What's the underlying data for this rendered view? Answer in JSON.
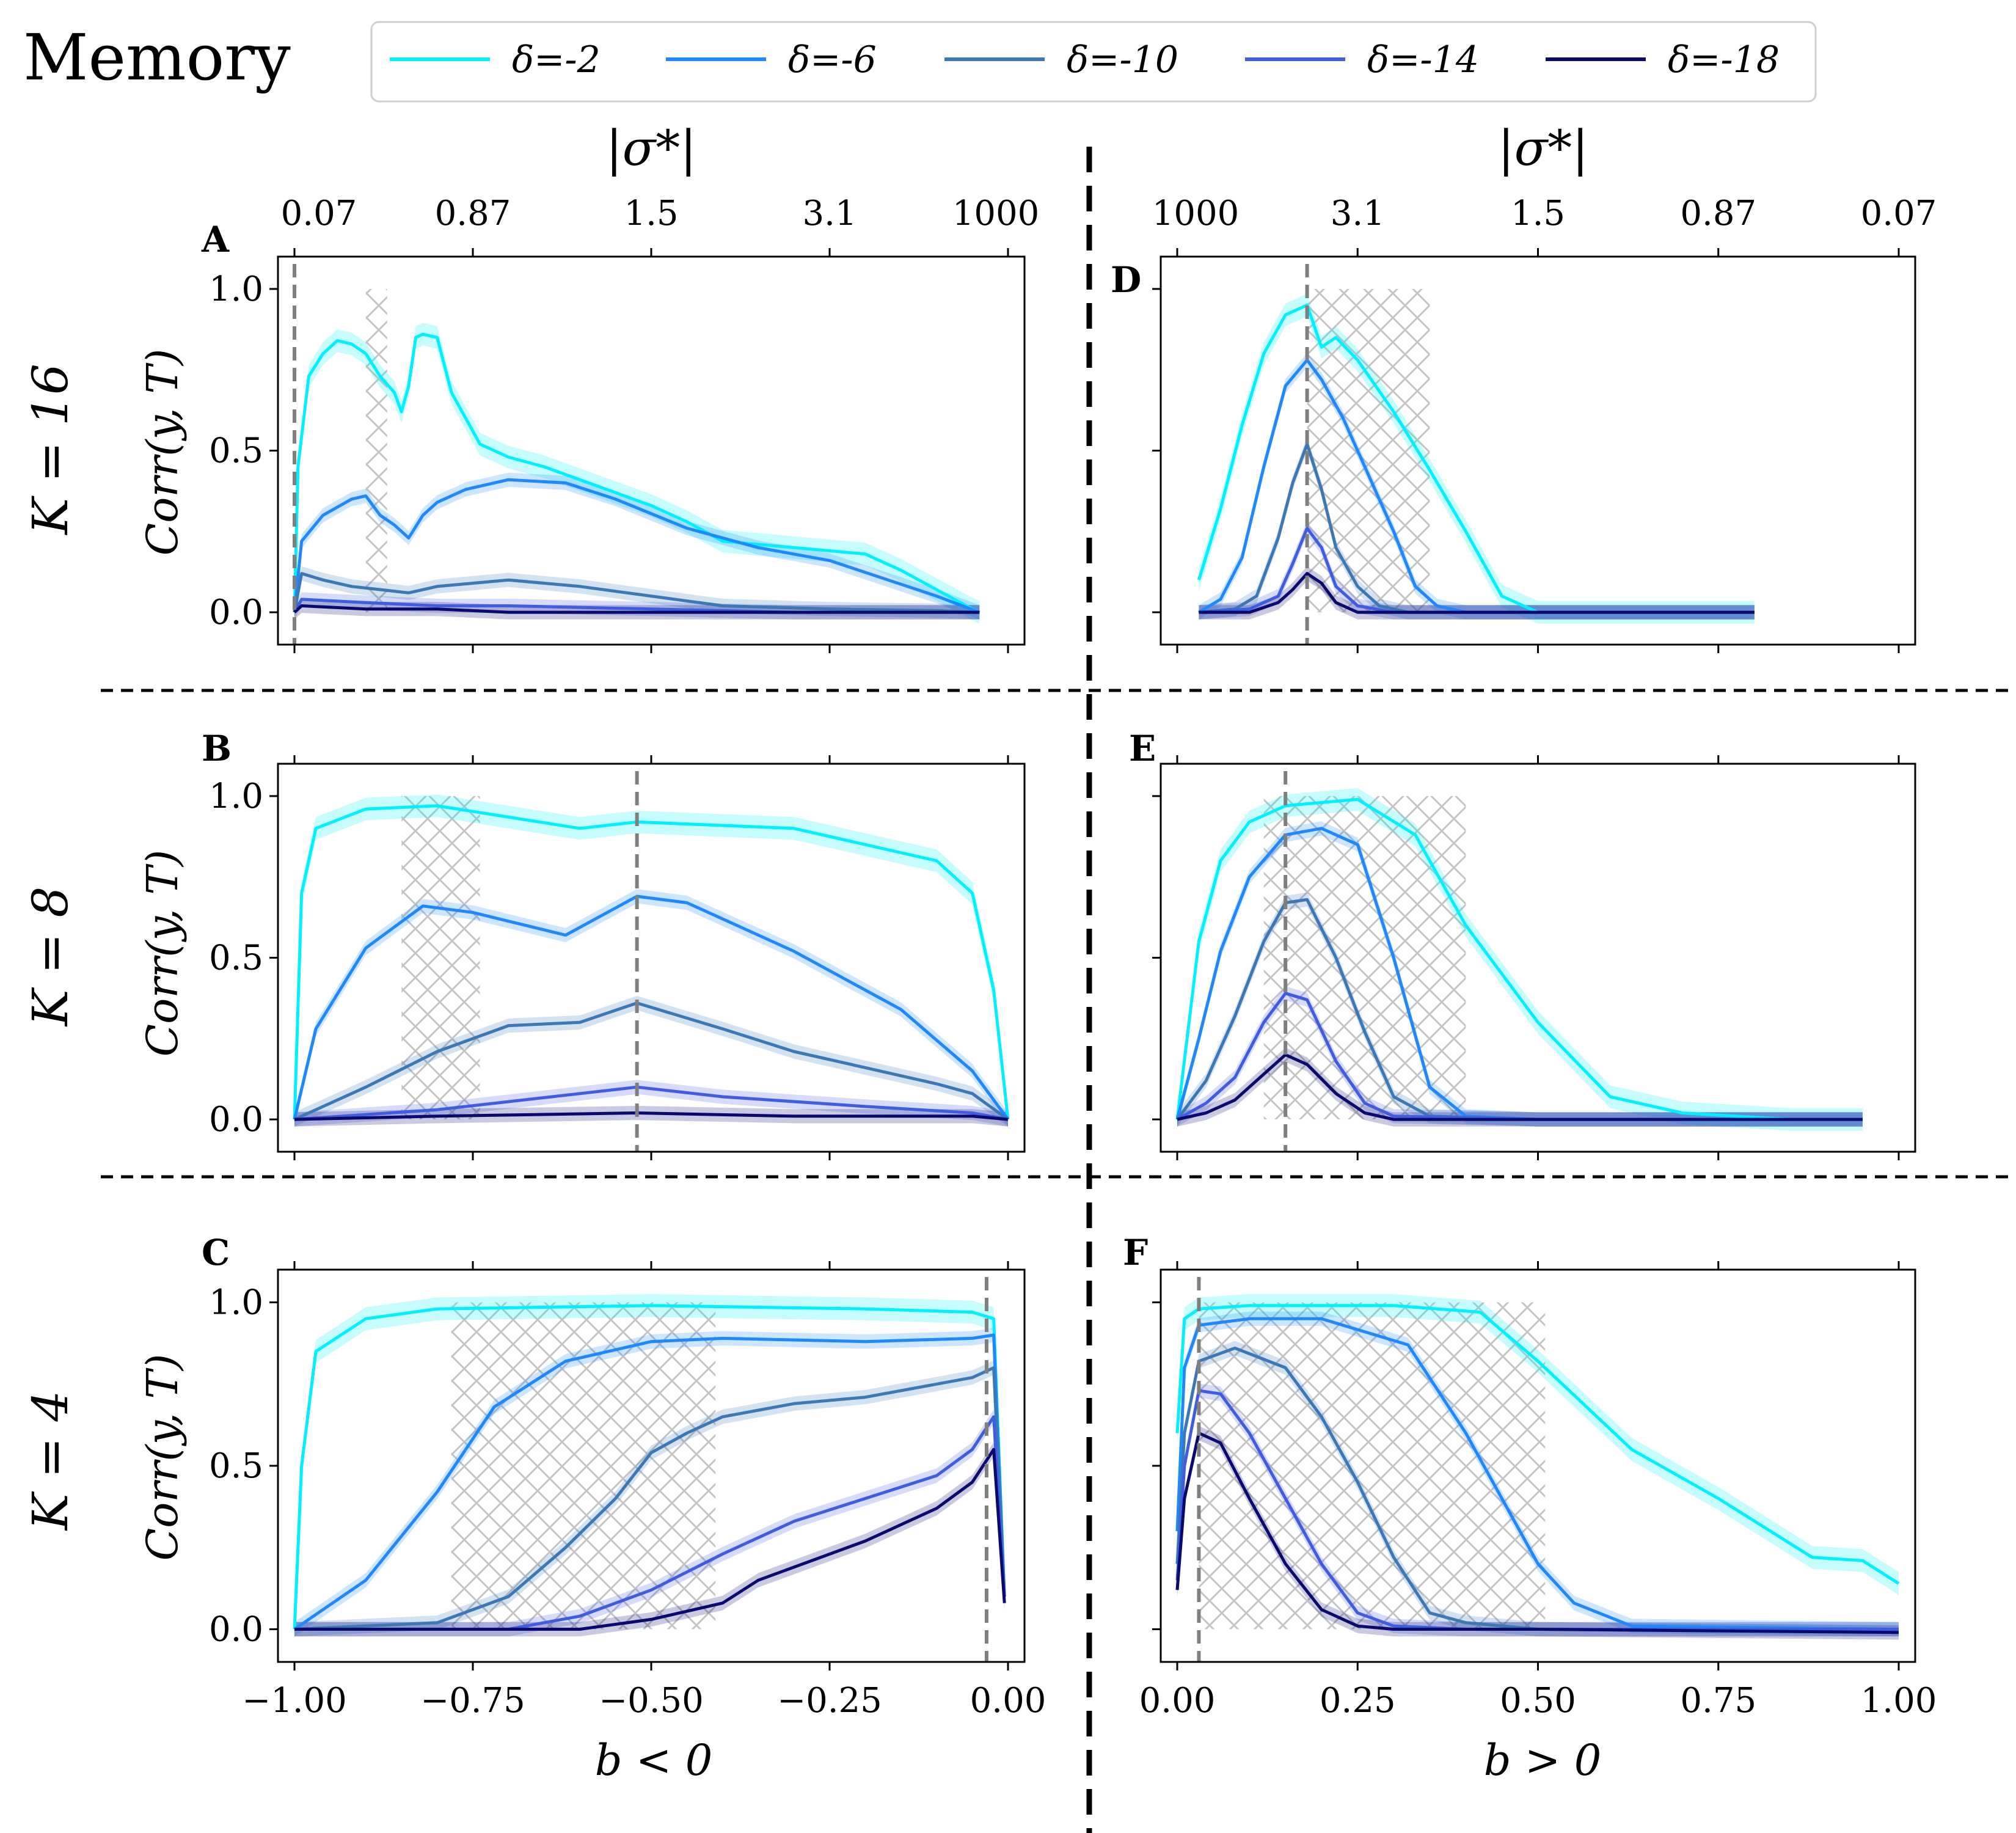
{
  "title": "Memory",
  "legend_labels": [
    "δ=-2",
    "δ=-6",
    "δ=-10",
    "δ=-14",
    "δ=-18"
  ],
  "series_colors": [
    "#00f0ff",
    "#1e88ff",
    "#3b78b5",
    "#3e5de0",
    "#0a0a6e"
  ],
  "hatch_color": "#c0c0c0",
  "top_axis_label": "|σ*|",
  "top_ticks_left": [
    "0.07",
    "0.87",
    "1.5",
    "3.1",
    "1000"
  ],
  "top_ticks_right": [
    "1000",
    "3.1",
    "1.5",
    "0.87",
    "0.07"
  ],
  "ylabel": "Corr(y, T)",
  "x_tick_labels_left": [
    "−1.00",
    "−0.75",
    "−0.50",
    "−0.25",
    "0.00"
  ],
  "x_tick_labels_right": [
    "0.00",
    "0.25",
    "0.50",
    "0.75",
    "1.00"
  ],
  "xlabel_left": "b < 0",
  "xlabel_right": "b > 0",
  "y_tick_labels": [
    "1.0",
    "0.5",
    "0.0"
  ],
  "row_labels": [
    "K = 16",
    "K = 8",
    "K = 4"
  ],
  "chart_data": [
    {
      "type": "line",
      "panel": "A",
      "row": "K = 16",
      "side": "left",
      "xlim": [
        -1.0,
        0.0
      ],
      "ylim": [
        -0.1,
        1.1
      ],
      "vline": -1.0,
      "hatch": [
        -0.9,
        -0.87
      ],
      "series": [
        {
          "name": "δ=-2",
          "x": [
            -1.0,
            -0.995,
            -0.98,
            -0.96,
            -0.94,
            -0.92,
            -0.9,
            -0.88,
            -0.86,
            -0.85,
            -0.84,
            -0.83,
            -0.82,
            -0.8,
            -0.78,
            -0.74,
            -0.7,
            -0.65,
            -0.6,
            -0.5,
            -0.45,
            -0.4,
            -0.3,
            -0.25,
            -0.2,
            -0.15,
            -0.05,
            -0.04
          ],
          "y": [
            0.0,
            0.45,
            0.73,
            0.8,
            0.84,
            0.83,
            0.8,
            0.73,
            0.68,
            0.62,
            0.7,
            0.85,
            0.86,
            0.85,
            0.68,
            0.52,
            0.48,
            0.45,
            0.41,
            0.33,
            0.28,
            0.22,
            0.2,
            0.19,
            0.18,
            0.13,
            0.01,
            0.0
          ]
        },
        {
          "name": "δ=-6",
          "x": [
            -1.0,
            -0.99,
            -0.96,
            -0.92,
            -0.9,
            -0.88,
            -0.86,
            -0.84,
            -0.82,
            -0.8,
            -0.76,
            -0.7,
            -0.62,
            -0.55,
            -0.45,
            -0.35,
            -0.25,
            -0.1,
            -0.04
          ],
          "y": [
            0.0,
            0.22,
            0.3,
            0.35,
            0.36,
            0.3,
            0.27,
            0.23,
            0.3,
            0.34,
            0.38,
            0.41,
            0.4,
            0.35,
            0.26,
            0.2,
            0.16,
            0.05,
            0.0
          ]
        },
        {
          "name": "δ=-10",
          "x": [
            -1.0,
            -0.99,
            -0.96,
            -0.92,
            -0.88,
            -0.84,
            -0.8,
            -0.75,
            -0.7,
            -0.6,
            -0.5,
            -0.4,
            -0.25,
            -0.1,
            -0.04
          ],
          "y": [
            0.0,
            0.12,
            0.1,
            0.08,
            0.07,
            0.06,
            0.08,
            0.09,
            0.1,
            0.08,
            0.05,
            0.02,
            0.01,
            0.005,
            0.0
          ]
        },
        {
          "name": "δ=-14",
          "x": [
            -1.0,
            -0.99,
            -0.9,
            -0.8,
            -0.7,
            -0.5,
            -0.3,
            -0.04
          ],
          "y": [
            0.0,
            0.04,
            0.03,
            0.02,
            0.02,
            0.01,
            0.0,
            0.0
          ]
        },
        {
          "name": "δ=-18",
          "x": [
            -1.0,
            -0.99,
            -0.9,
            -0.8,
            -0.7,
            -0.5,
            -0.3,
            -0.04
          ],
          "y": [
            0.0,
            0.02,
            0.01,
            0.01,
            0.0,
            0.0,
            0.0,
            0.0
          ]
        }
      ]
    },
    {
      "type": "line",
      "panel": "D",
      "row": "K = 16",
      "side": "right",
      "xlim": [
        0.0,
        1.0
      ],
      "ylim": [
        -0.1,
        1.1
      ],
      "vline": 0.18,
      "hatch": [
        0.18,
        0.35
      ],
      "series": [
        {
          "name": "δ=-2",
          "x": [
            0.03,
            0.06,
            0.09,
            0.12,
            0.15,
            0.18,
            0.2,
            0.22,
            0.25,
            0.3,
            0.35,
            0.4,
            0.45,
            0.5,
            0.6,
            0.8
          ],
          "y": [
            0.1,
            0.32,
            0.58,
            0.8,
            0.92,
            0.95,
            0.82,
            0.85,
            0.78,
            0.62,
            0.44,
            0.25,
            0.05,
            0.0,
            0.0,
            0.0
          ]
        },
        {
          "name": "δ=-6",
          "x": [
            0.03,
            0.06,
            0.09,
            0.12,
            0.15,
            0.18,
            0.2,
            0.23,
            0.26,
            0.3,
            0.33,
            0.36,
            0.4,
            0.5,
            0.8
          ],
          "y": [
            0.0,
            0.04,
            0.17,
            0.45,
            0.7,
            0.78,
            0.72,
            0.6,
            0.45,
            0.25,
            0.08,
            0.02,
            0.0,
            0.0,
            0.0
          ]
        },
        {
          "name": "δ=-10",
          "x": [
            0.03,
            0.08,
            0.11,
            0.14,
            0.16,
            0.18,
            0.2,
            0.22,
            0.25,
            0.28,
            0.32,
            0.4,
            0.8
          ],
          "y": [
            0.0,
            0.01,
            0.05,
            0.23,
            0.4,
            0.52,
            0.38,
            0.2,
            0.08,
            0.02,
            0.0,
            0.0,
            0.0
          ]
        },
        {
          "name": "δ=-14",
          "x": [
            0.03,
            0.1,
            0.14,
            0.16,
            0.18,
            0.2,
            0.22,
            0.25,
            0.3,
            0.8
          ],
          "y": [
            0.0,
            0.01,
            0.05,
            0.15,
            0.26,
            0.2,
            0.08,
            0.02,
            0.0,
            0.0
          ]
        },
        {
          "name": "δ=-18",
          "x": [
            0.03,
            0.1,
            0.14,
            0.16,
            0.18,
            0.2,
            0.22,
            0.25,
            0.3,
            0.8
          ],
          "y": [
            0.0,
            0.0,
            0.03,
            0.07,
            0.12,
            0.09,
            0.03,
            0.0,
            0.0,
            0.0
          ]
        }
      ]
    },
    {
      "type": "line",
      "panel": "B",
      "row": "K = 8",
      "side": "left",
      "xlim": [
        -1.0,
        0.0
      ],
      "ylim": [
        -0.1,
        1.1
      ],
      "vline": -0.52,
      "hatch": [
        -0.85,
        -0.74
      ],
      "series": [
        {
          "name": "δ=-2",
          "x": [
            -1.0,
            -0.99,
            -0.97,
            -0.9,
            -0.8,
            -0.6,
            -0.52,
            -0.3,
            -0.1,
            -0.05,
            -0.02,
            0.0
          ],
          "y": [
            0.0,
            0.7,
            0.9,
            0.96,
            0.97,
            0.9,
            0.92,
            0.9,
            0.8,
            0.7,
            0.4,
            0.0
          ]
        },
        {
          "name": "δ=-6",
          "x": [
            -1.0,
            -0.97,
            -0.9,
            -0.82,
            -0.75,
            -0.62,
            -0.52,
            -0.45,
            -0.3,
            -0.15,
            -0.05,
            0.0
          ],
          "y": [
            0.0,
            0.28,
            0.53,
            0.66,
            0.64,
            0.57,
            0.69,
            0.67,
            0.52,
            0.34,
            0.15,
            0.0
          ]
        },
        {
          "name": "δ=-10",
          "x": [
            -1.0,
            -0.9,
            -0.8,
            -0.7,
            -0.6,
            -0.52,
            -0.4,
            -0.3,
            -0.2,
            -0.1,
            -0.05,
            0.0
          ],
          "y": [
            0.0,
            0.1,
            0.21,
            0.29,
            0.3,
            0.36,
            0.28,
            0.21,
            0.16,
            0.11,
            0.08,
            0.0
          ]
        },
        {
          "name": "δ=-14",
          "x": [
            -1.0,
            -0.8,
            -0.6,
            -0.52,
            -0.4,
            -0.2,
            -0.05,
            0.0
          ],
          "y": [
            0.0,
            0.03,
            0.08,
            0.1,
            0.07,
            0.04,
            0.02,
            0.0
          ]
        },
        {
          "name": "δ=-18",
          "x": [
            -1.0,
            -0.8,
            -0.52,
            -0.3,
            -0.05,
            0.0
          ],
          "y": [
            0.0,
            0.01,
            0.02,
            0.01,
            0.01,
            0.0
          ]
        }
      ]
    },
    {
      "type": "line",
      "panel": "E",
      "row": "K = 8",
      "side": "right",
      "xlim": [
        0.0,
        1.0
      ],
      "ylim": [
        -0.1,
        1.1
      ],
      "vline": 0.15,
      "hatch": [
        0.12,
        0.4
      ],
      "series": [
        {
          "name": "δ=-2",
          "x": [
            0.0,
            0.03,
            0.06,
            0.1,
            0.15,
            0.2,
            0.25,
            0.33,
            0.4,
            0.5,
            0.6,
            0.7,
            0.85,
            0.95
          ],
          "y": [
            0.0,
            0.55,
            0.8,
            0.92,
            0.97,
            0.98,
            0.99,
            0.88,
            0.6,
            0.3,
            0.07,
            0.02,
            0.0,
            0.0
          ]
        },
        {
          "name": "δ=-6",
          "x": [
            0.0,
            0.03,
            0.06,
            0.1,
            0.15,
            0.2,
            0.25,
            0.3,
            0.35,
            0.4,
            0.5,
            0.7,
            0.95
          ],
          "y": [
            0.0,
            0.25,
            0.52,
            0.75,
            0.88,
            0.9,
            0.85,
            0.5,
            0.1,
            0.01,
            0.0,
            0.0,
            0.0
          ]
        },
        {
          "name": "δ=-10",
          "x": [
            0.0,
            0.04,
            0.08,
            0.12,
            0.15,
            0.18,
            0.22,
            0.26,
            0.3,
            0.35,
            0.5,
            0.95
          ],
          "y": [
            0.0,
            0.12,
            0.32,
            0.55,
            0.67,
            0.68,
            0.5,
            0.27,
            0.07,
            0.01,
            0.0,
            0.0
          ]
        },
        {
          "name": "δ=-14",
          "x": [
            0.0,
            0.04,
            0.08,
            0.12,
            0.15,
            0.18,
            0.22,
            0.26,
            0.3,
            0.5,
            0.95
          ],
          "y": [
            0.0,
            0.05,
            0.13,
            0.3,
            0.39,
            0.37,
            0.18,
            0.05,
            0.01,
            0.0,
            0.0
          ]
        },
        {
          "name": "δ=-18",
          "x": [
            0.0,
            0.04,
            0.08,
            0.12,
            0.15,
            0.18,
            0.22,
            0.26,
            0.3,
            0.5,
            0.95
          ],
          "y": [
            0.0,
            0.02,
            0.06,
            0.14,
            0.2,
            0.17,
            0.08,
            0.02,
            0.0,
            0.0,
            0.0
          ]
        }
      ]
    },
    {
      "type": "line",
      "panel": "C",
      "row": "K = 4",
      "side": "left",
      "xlim": [
        -1.0,
        0.0
      ],
      "ylim": [
        -0.1,
        1.1
      ],
      "vline": -0.03,
      "hatch": [
        -0.78,
        -0.41
      ],
      "series": [
        {
          "name": "δ=-2",
          "x": [
            -1.0,
            -0.99,
            -0.97,
            -0.9,
            -0.8,
            -0.5,
            -0.2,
            -0.05,
            -0.02,
            -0.005
          ],
          "y": [
            0.0,
            0.5,
            0.85,
            0.95,
            0.98,
            0.99,
            0.98,
            0.97,
            0.95,
            0.1
          ]
        },
        {
          "name": "δ=-6",
          "x": [
            -1.0,
            -0.9,
            -0.8,
            -0.72,
            -0.62,
            -0.5,
            -0.4,
            -0.2,
            -0.05,
            -0.02,
            -0.005
          ],
          "y": [
            0.0,
            0.15,
            0.42,
            0.68,
            0.82,
            0.88,
            0.89,
            0.88,
            0.89,
            0.9,
            0.1
          ]
        },
        {
          "name": "δ=-10",
          "x": [
            -1.0,
            -0.8,
            -0.7,
            -0.62,
            -0.55,
            -0.5,
            -0.45,
            -0.4,
            -0.3,
            -0.2,
            -0.05,
            -0.02,
            -0.005
          ],
          "y": [
            0.0,
            0.02,
            0.1,
            0.25,
            0.4,
            0.54,
            0.6,
            0.65,
            0.69,
            0.71,
            0.77,
            0.8,
            0.1
          ]
        },
        {
          "name": "δ=-14",
          "x": [
            -1.0,
            -0.7,
            -0.6,
            -0.5,
            -0.4,
            -0.3,
            -0.2,
            -0.1,
            -0.05,
            -0.02,
            -0.005
          ],
          "y": [
            0.0,
            0.0,
            0.04,
            0.12,
            0.23,
            0.33,
            0.4,
            0.47,
            0.55,
            0.65,
            0.1
          ]
        },
        {
          "name": "δ=-18",
          "x": [
            -1.0,
            -0.6,
            -0.5,
            -0.4,
            -0.35,
            -0.2,
            -0.1,
            -0.05,
            -0.02,
            -0.005
          ],
          "y": [
            0.0,
            0.0,
            0.03,
            0.08,
            0.15,
            0.27,
            0.37,
            0.45,
            0.55,
            0.08
          ]
        }
      ]
    },
    {
      "type": "line",
      "panel": "F",
      "row": "K = 4",
      "side": "right",
      "xlim": [
        0.0,
        1.0
      ],
      "ylim": [
        -0.1,
        1.1
      ],
      "vline": 0.03,
      "hatch": [
        0.03,
        0.51
      ],
      "series": [
        {
          "name": "δ=-2",
          "x": [
            0.0,
            0.01,
            0.03,
            0.1,
            0.3,
            0.42,
            0.5,
            0.63,
            0.75,
            0.88,
            0.95,
            1.0
          ],
          "y": [
            0.6,
            0.95,
            0.98,
            0.99,
            0.99,
            0.97,
            0.82,
            0.55,
            0.4,
            0.22,
            0.21,
            0.14
          ]
        },
        {
          "name": "δ=-6",
          "x": [
            0.0,
            0.01,
            0.03,
            0.1,
            0.2,
            0.32,
            0.4,
            0.45,
            0.5,
            0.55,
            0.63,
            1.0
          ],
          "y": [
            0.3,
            0.8,
            0.93,
            0.95,
            0.95,
            0.87,
            0.6,
            0.4,
            0.2,
            0.08,
            0.01,
            0.0
          ]
        },
        {
          "name": "δ=-10",
          "x": [
            0.0,
            0.01,
            0.03,
            0.08,
            0.15,
            0.2,
            0.25,
            0.3,
            0.35,
            0.4,
            0.5,
            1.0
          ],
          "y": [
            0.2,
            0.6,
            0.82,
            0.86,
            0.8,
            0.65,
            0.45,
            0.22,
            0.05,
            0.02,
            0.0,
            0.0
          ]
        },
        {
          "name": "δ=-14",
          "x": [
            0.0,
            0.01,
            0.03,
            0.06,
            0.1,
            0.15,
            0.2,
            0.25,
            0.3,
            0.4,
            1.0
          ],
          "y": [
            0.15,
            0.5,
            0.73,
            0.72,
            0.6,
            0.4,
            0.2,
            0.05,
            0.01,
            0.0,
            0.0
          ]
        },
        {
          "name": "δ=-18",
          "x": [
            0.0,
            0.01,
            0.03,
            0.06,
            0.1,
            0.15,
            0.2,
            0.25,
            0.3,
            0.5,
            1.0
          ],
          "y": [
            0.12,
            0.4,
            0.6,
            0.57,
            0.4,
            0.2,
            0.06,
            0.01,
            0.0,
            0.0,
            -0.01
          ]
        }
      ]
    }
  ]
}
